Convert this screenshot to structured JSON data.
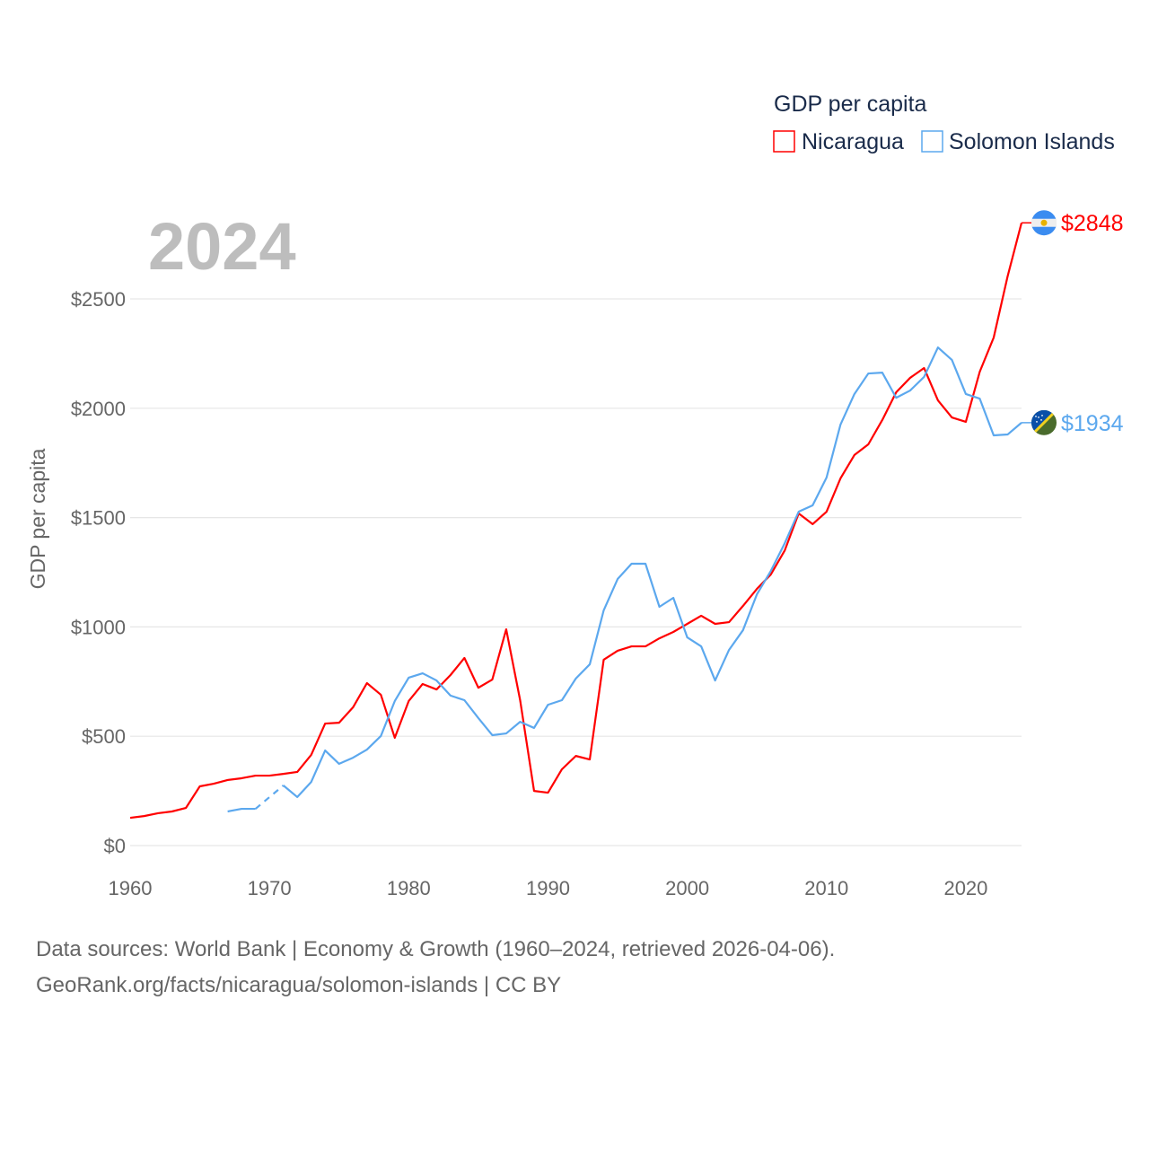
{
  "chart_data": {
    "type": "line",
    "title": "GDP per capita",
    "year_label": "2024",
    "ylabel": "GDP per capita",
    "xlabel": "",
    "xlim": [
      1960,
      2024
    ],
    "ylim": [
      0,
      2848
    ],
    "x_ticks": [
      1960,
      1970,
      1980,
      1990,
      2000,
      2010,
      2020
    ],
    "x_tick_labels": [
      "1960",
      "1970",
      "1980",
      "1990",
      "2000",
      "2010",
      "2020"
    ],
    "y_ticks": [
      0,
      500,
      1000,
      1500,
      2000,
      2500
    ],
    "y_tick_labels": [
      "$0",
      "$500",
      "$1000",
      "$1500",
      "$2000",
      "$2500"
    ],
    "grid": true,
    "legend_position": "top-right",
    "series": [
      {
        "name": "Nicaragua",
        "color": "#ff0000",
        "end_label": "$2848",
        "flag_icon": "nicaragua-flag-icon",
        "start_year": 1960,
        "values": [
          127,
          135,
          148,
          156,
          172,
          271,
          283,
          300,
          308,
          320,
          320,
          328,
          337,
          415,
          558,
          562,
          632,
          743,
          690,
          493,
          661,
          739,
          714,
          780,
          858,
          722,
          759,
          989,
          665,
          250,
          242,
          349,
          410,
          394,
          850,
          891,
          911,
          911,
          948,
          977,
          1014,
          1051,
          1014,
          1022,
          1096,
          1174,
          1240,
          1350,
          1519,
          1470,
          1527,
          1679,
          1786,
          1835,
          1946,
          2073,
          2139,
          2184,
          2036,
          1958,
          1938,
          2167,
          2323,
          2603,
          2848
        ]
      },
      {
        "name": "Solomon Islands",
        "color": "#5ca8ee",
        "end_label": "$1934",
        "flag_icon": "solomon-islands-flag-icon",
        "start_year": 1967,
        "values": [
          156,
          168,
          168,
          null,
          275,
          222,
          291,
          435,
          374,
          402,
          439,
          501,
          661,
          768,
          788,
          755,
          686,
          665,
          583,
          505,
          513,
          566,
          538,
          644,
          665,
          764,
          829,
          1076,
          1219,
          1289,
          1289,
          1092,
          1133,
          952,
          911,
          755,
          895,
          985,
          1149,
          1256,
          1383,
          1527,
          1556,
          1683,
          1925,
          2065,
          2159,
          2163,
          2048,
          2081,
          2143,
          2278,
          2221,
          2065,
          2044,
          1876,
          1880,
          1934
        ]
      }
    ]
  },
  "footer": {
    "line1": "Data sources: World Bank | Economy & Growth (1960–2024, retrieved 2026-04-06).",
    "line2": "GeoRank.org/facts/nicaragua/solomon-islands | CC BY"
  }
}
